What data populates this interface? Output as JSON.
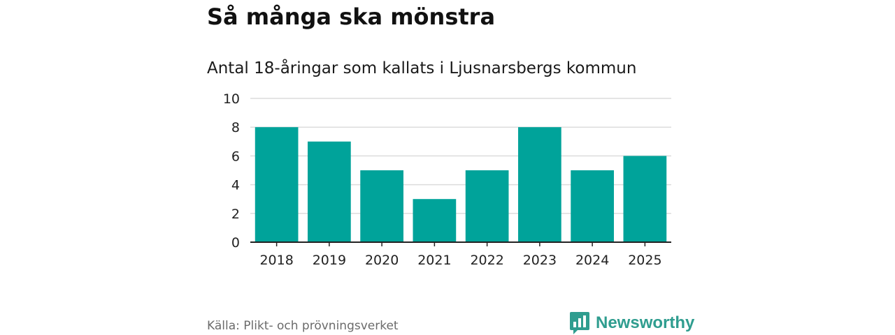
{
  "header": {
    "title": "Så många ska mönstra",
    "subtitle": "Antal 18-åringar som kallats i Ljusnarsbergs kommun"
  },
  "chart_data": {
    "type": "bar",
    "title": "Så många ska mönstra",
    "subtitle": "Antal 18-åringar som kallats i Ljusnarsbergs kommun",
    "xlabel": "",
    "ylabel": "",
    "categories": [
      "2018",
      "2019",
      "2020",
      "2021",
      "2022",
      "2023",
      "2024",
      "2025"
    ],
    "values": [
      8,
      7,
      5,
      3,
      5,
      8,
      5,
      6
    ],
    "ylim": [
      0,
      10
    ],
    "yticks": [
      0,
      2,
      4,
      6,
      8,
      10
    ],
    "grid": true,
    "bar_color": "#00a39a",
    "grid_color": "#dcdcdc",
    "axis_color": "#222222"
  },
  "footer": {
    "source": "Källa: Plikt- och prövningsverket",
    "brand": "Newsworthy",
    "brand_icon": "newsworthy-logo-icon",
    "brand_color": "#2f9d8f"
  }
}
